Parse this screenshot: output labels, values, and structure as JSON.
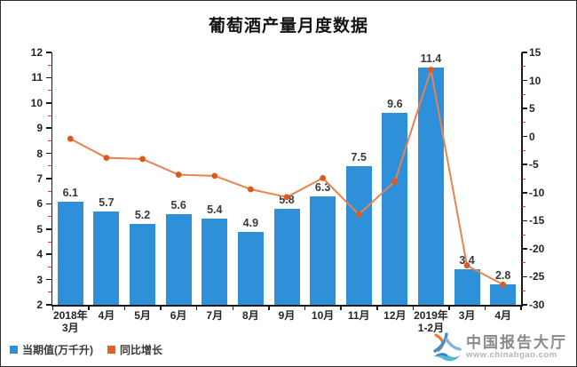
{
  "title": "葡萄酒产量月度数据",
  "chart_data": {
    "type": "combo",
    "categories": [
      "2018年\n3月",
      "4月",
      "5月",
      "6月",
      "7月",
      "8月",
      "9月",
      "10月",
      "11月",
      "12月",
      "2019年\n1-2月",
      "3月",
      "4月"
    ],
    "series": [
      {
        "name": "当期值(万千升)",
        "type": "bar",
        "axis": "left",
        "values": [
          6.1,
          5.7,
          5.2,
          5.6,
          5.4,
          4.9,
          5.8,
          6.3,
          7.5,
          9.6,
          11.4,
          3.4,
          2.8
        ],
        "color": "#2E90D8",
        "data_labels_visible": true
      },
      {
        "name": "同比增长",
        "type": "line",
        "axis": "right",
        "values": [
          -0.4,
          -3.8,
          -4.0,
          -6.8,
          -7.0,
          -9.4,
          -10.8,
          -7.4,
          -13.9,
          -8.0,
          11.9,
          -23.0,
          -26.4
        ],
        "color": "#E8824E",
        "marker_color": "#DD5A1B",
        "data_labels_visible": false
      }
    ],
    "axes": {
      "left": {
        "min": 2,
        "max": 12,
        "step": 1,
        "minor_step": 0.5
      },
      "right": {
        "min": -30,
        "max": 15,
        "step": 5,
        "minor_step": 2.5
      }
    },
    "grid": false,
    "legend_position": "bottom-left",
    "minor_tick_color": "#E04020",
    "axis_color": "#1a1a1a"
  },
  "legend": {
    "items": [
      {
        "label": "当期值(万千升)",
        "color": "#2E90D8"
      },
      {
        "label": "同比增长",
        "color": "#E2631F"
      }
    ]
  },
  "branding": {
    "name": "中国报告大厅",
    "url": "www.chinabgao.com"
  }
}
